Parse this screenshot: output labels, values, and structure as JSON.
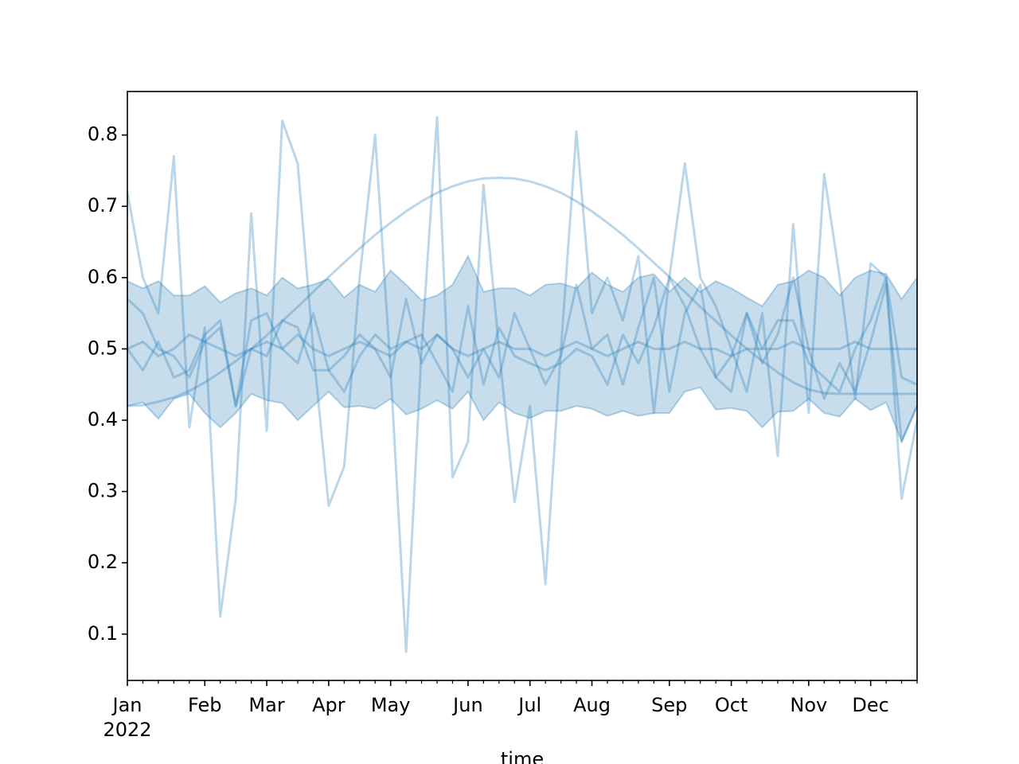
{
  "chart_data": {
    "type": "line",
    "categories": [
      "Jan",
      null,
      null,
      null,
      null,
      "Feb",
      null,
      null,
      null,
      "Mar",
      null,
      null,
      null,
      "Apr",
      null,
      null,
      null,
      "May",
      null,
      null,
      null,
      null,
      "Jun",
      null,
      null,
      null,
      "Jul",
      null,
      null,
      null,
      "Aug",
      null,
      null,
      null,
      null,
      "Sep",
      null,
      null,
      null,
      "Oct",
      null,
      null,
      null,
      null,
      "Nov",
      null,
      null,
      null,
      "Dec",
      null,
      null,
      null
    ],
    "x_sublabel": "2022",
    "xlabel": "time",
    "ylim": [
      0.035,
      0.861
    ],
    "yticks": [
      0.1,
      0.2,
      0.3,
      0.4,
      0.5,
      0.6,
      0.7,
      0.8
    ],
    "color": "#1f77b4",
    "band": {
      "upper": [
        0.595,
        0.585,
        0.595,
        0.575,
        0.575,
        0.588,
        0.565,
        0.578,
        0.585,
        0.575,
        0.6,
        0.585,
        0.59,
        0.598,
        0.572,
        0.59,
        0.58,
        0.61,
        0.59,
        0.568,
        0.575,
        0.59,
        0.63,
        0.58,
        0.585,
        0.585,
        0.575,
        0.59,
        0.592,
        0.585,
        0.607,
        0.59,
        0.58,
        0.6,
        0.605,
        0.58,
        0.6,
        0.58,
        0.595,
        0.585,
        0.572,
        0.56,
        0.59,
        0.595,
        0.61,
        0.6,
        0.575,
        0.6,
        0.61,
        0.605,
        0.57,
        0.6
      ],
      "lower": [
        0.42,
        0.425,
        0.402,
        0.43,
        0.437,
        0.41,
        0.39,
        0.41,
        0.437,
        0.428,
        0.424,
        0.4,
        0.42,
        0.44,
        0.418,
        0.42,
        0.416,
        0.43,
        0.408,
        0.416,
        0.428,
        0.416,
        0.44,
        0.4,
        0.425,
        0.41,
        0.403,
        0.413,
        0.413,
        0.42,
        0.416,
        0.406,
        0.413,
        0.406,
        0.41,
        0.41,
        0.44,
        0.446,
        0.415,
        0.417,
        0.413,
        0.39,
        0.412,
        0.413,
        0.43,
        0.41,
        0.405,
        0.43,
        0.414,
        0.425,
        0.37,
        0.42
      ]
    },
    "series": [
      {
        "values": [
          0.5,
          0.51,
          0.49,
          0.5,
          0.52,
          0.51,
          0.5,
          0.49,
          0.5,
          0.51,
          0.5,
          0.52,
          0.5,
          0.49,
          0.5,
          0.51,
          0.5,
          0.49,
          0.51,
          0.5,
          0.52,
          0.5,
          0.49,
          0.5,
          0.51,
          0.5,
          0.5,
          0.49,
          0.5,
          0.51,
          0.5,
          0.49,
          0.5,
          0.51,
          0.5,
          0.5,
          0.51,
          0.5,
          0.5,
          0.49,
          0.5,
          0.5,
          0.5,
          0.51,
          0.5,
          0.5,
          0.5,
          0.51,
          0.5,
          0.5,
          0.5,
          0.5
        ]
      },
      {
        "values": [
          0.57,
          0.55,
          0.5,
          0.49,
          0.46,
          0.51,
          0.53,
          0.42,
          0.54,
          0.55,
          0.5,
          0.48,
          0.55,
          0.47,
          0.44,
          0.49,
          0.52,
          0.5,
          0.51,
          0.52,
          0.48,
          0.44,
          0.56,
          0.45,
          0.53,
          0.49,
          0.48,
          0.47,
          0.48,
          0.5,
          0.49,
          0.45,
          0.52,
          0.48,
          0.53,
          0.6,
          0.56,
          0.5,
          0.46,
          0.44,
          0.55,
          0.5,
          0.54,
          0.54,
          0.48,
          0.46,
          0.44,
          0.5,
          0.54,
          0.6,
          0.46,
          0.45
        ]
      },
      {
        "values": [
          0.5,
          0.47,
          0.51,
          0.46,
          0.47,
          0.52,
          0.54,
          0.42,
          0.5,
          0.49,
          0.54,
          0.53,
          0.47,
          0.47,
          0.49,
          0.52,
          0.5,
          0.46,
          0.57,
          0.48,
          0.52,
          0.5,
          0.46,
          0.5,
          0.46,
          0.55,
          0.5,
          0.45,
          0.49,
          0.59,
          0.5,
          0.52,
          0.45,
          0.53,
          0.6,
          0.44,
          0.55,
          0.59,
          0.46,
          0.49,
          0.55,
          0.48,
          0.52,
          0.6,
          0.5,
          0.43,
          0.48,
          0.44,
          0.51,
          0.59,
          0.37,
          0.42
        ]
      },
      {
        "values": [
          0.72,
          0.6,
          0.55,
          0.77,
          0.39,
          0.53,
          0.125,
          0.29,
          0.69,
          0.385,
          0.82,
          0.76,
          0.5,
          0.28,
          0.335,
          0.6,
          0.8,
          0.47,
          0.075,
          0.5,
          0.825,
          0.32,
          0.37,
          0.73,
          0.5,
          0.285,
          0.42,
          0.17,
          0.5,
          0.805,
          0.55,
          0.6,
          0.54,
          0.63,
          0.41,
          0.6,
          0.76,
          0.6,
          0.56,
          0.5,
          0.44,
          0.55,
          0.35,
          0.675,
          0.41,
          0.745,
          0.6,
          0.43,
          0.62,
          0.6,
          0.29,
          0.4
        ]
      },
      {
        "values": [
          0.42,
          0.421,
          0.426,
          0.432,
          0.441,
          0.453,
          0.467,
          0.483,
          0.5,
          0.519,
          0.539,
          0.559,
          0.58,
          0.601,
          0.621,
          0.641,
          0.66,
          0.677,
          0.693,
          0.707,
          0.719,
          0.728,
          0.735,
          0.739,
          0.74,
          0.739,
          0.735,
          0.728,
          0.719,
          0.707,
          0.693,
          0.677,
          0.66,
          0.641,
          0.621,
          0.601,
          0.58,
          0.559,
          0.539,
          0.519,
          0.5,
          0.483,
          0.467,
          0.453,
          0.443,
          0.438,
          0.437,
          0.437,
          0.437,
          0.437,
          0.437,
          0.437
        ]
      }
    ]
  }
}
